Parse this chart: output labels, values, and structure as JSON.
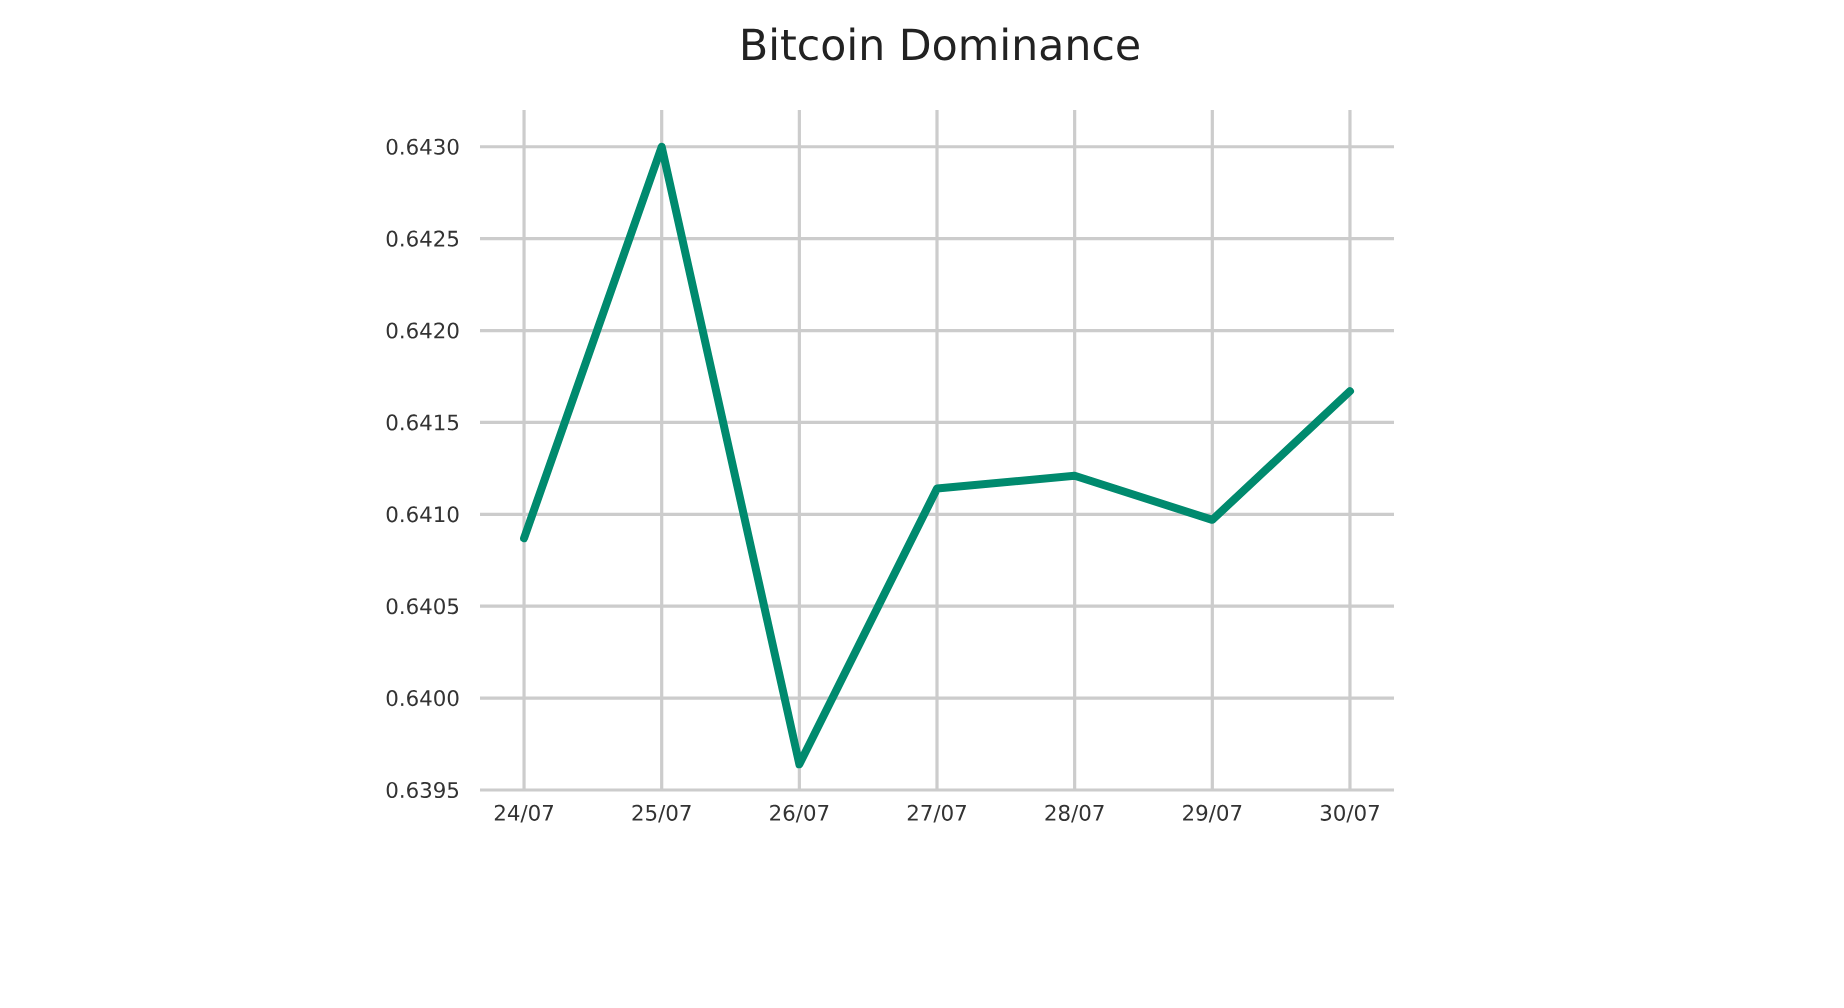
{
  "chart_data": {
    "type": "line",
    "title": "Bitcoin Dominance",
    "categories": [
      "24/07",
      "25/07",
      "26/07",
      "27/07",
      "28/07",
      "29/07",
      "30/07"
    ],
    "series": [
      {
        "color": "#008a6e",
        "values": [
          0.64087,
          0.643,
          0.63964,
          0.64114,
          0.64121,
          0.64097,
          0.64167
        ]
      }
    ],
    "ylim": [
      0.6395,
      0.6432
    ],
    "yticks": [
      {
        "value": 0.6395,
        "label": "0.6395"
      },
      {
        "value": 0.64,
        "label": "0.6400"
      },
      {
        "value": 0.6405,
        "label": "0.6405"
      },
      {
        "value": 0.641,
        "label": "0.6410"
      },
      {
        "value": 0.6415,
        "label": "0.6415"
      },
      {
        "value": 0.642,
        "label": "0.6420"
      },
      {
        "value": 0.6425,
        "label": "0.6425"
      },
      {
        "value": 0.643,
        "label": "0.6430"
      }
    ],
    "grid": true,
    "marker": "none",
    "line_style": "solid"
  }
}
